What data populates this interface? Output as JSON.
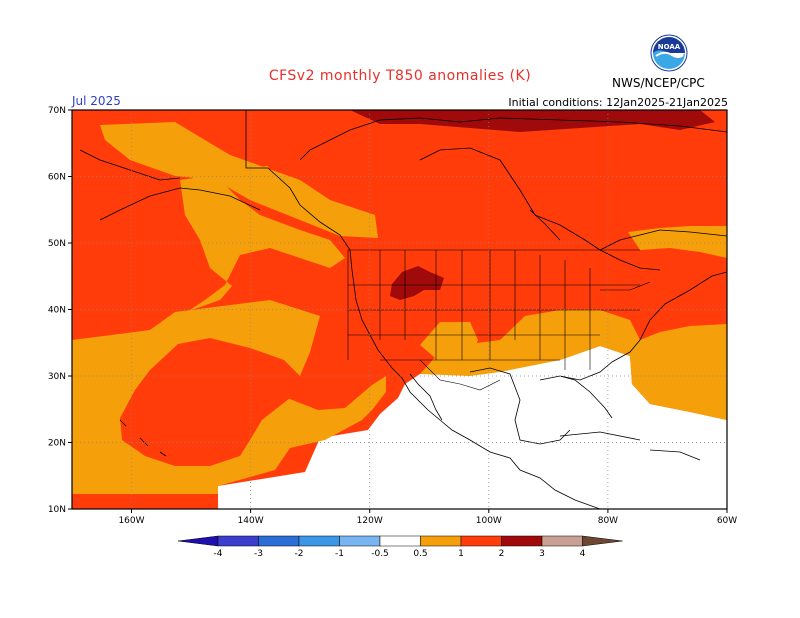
{
  "header": {
    "title": "CFSv2 monthly T850 anomalies (K)",
    "month": "Jul 2025",
    "initial_conditions": "Initial conditions: 12Jan2025-21Jan2025",
    "agency": "NWS/NCEP/CPC",
    "logo_text": "NOAA"
  },
  "map": {
    "lat_labels": [
      "70N",
      "60N",
      "50N",
      "40N",
      "30N",
      "20N",
      "10N"
    ],
    "lon_labels": [
      "160W",
      "140W",
      "120W",
      "100W",
      "80W",
      "60W"
    ],
    "projection": "lat-lon",
    "lat_range": [
      10,
      70
    ],
    "lon_range": [
      -170,
      -60
    ],
    "variable": "T850 anomalies (K)"
  },
  "colorbar": {
    "ticks": [
      "-4",
      "-3",
      "-2",
      "-1",
      "-0.5",
      "0.5",
      "1",
      "2",
      "3",
      "4"
    ],
    "colors": [
      "#1e10b0",
      "#3c3ccd",
      "#2a6ed6",
      "#3c96e6",
      "#78b4f0",
      "#ffffff",
      "#f5a00a",
      "#ff3c0a",
      "#a00a0a",
      "#c8a094",
      "#6e4632"
    ]
  },
  "colors": {
    "title": "#e8302a",
    "month": "#2e40c8",
    "anom_05_1": "#f5a00a",
    "anom_1_2": "#ff3c0a",
    "anom_2_3": "#a00a0a"
  }
}
